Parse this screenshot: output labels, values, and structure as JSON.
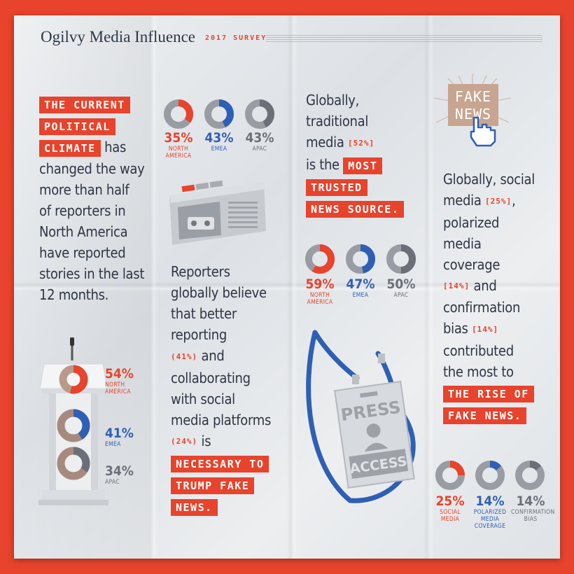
{
  "header": {
    "title": "Ogilvy Media Influence",
    "subtitle": "2017 SURVEY"
  },
  "block1": {
    "highlight_lines": [
      "THE CURRENT",
      "POLITICAL",
      "CLIMATE"
    ],
    "after_highlight": "has",
    "lines": [
      "changed the way",
      "more than half",
      "of reporters in",
      "North America",
      "have reported",
      "stories in the last",
      "12 months."
    ]
  },
  "block2": {
    "lines": [
      "Reporters",
      "globally believe",
      "that better",
      "reporting"
    ],
    "pct1": "(41%)",
    "mid1": "and",
    "lines2": [
      "collaborating",
      "with social",
      "media platforms"
    ],
    "pct2": "(24%)",
    "mid2": "is",
    "highlight_lines": [
      "NECESSARY TO",
      "TRUMP FAKE",
      "NEWS."
    ]
  },
  "block3": {
    "lines": [
      "Globally,",
      "traditional",
      "media"
    ],
    "pct": "[52%]",
    "is_the": "is the",
    "highlight_lines": [
      "MOST",
      "TRUSTED",
      "NEWS SOURCE."
    ]
  },
  "block4": {
    "lines": [
      "Globally, social",
      "media"
    ],
    "pct1": "[25%]",
    "lines2": [
      "polarized",
      "media",
      "coverage"
    ],
    "pct2": "[14%]",
    "and1": "and",
    "line3": "confirmation",
    "bias": "bias",
    "pct3": "[14%]",
    "lines4": [
      "contributed",
      "the most to"
    ],
    "highlight_lines": [
      "THE RISE OF",
      "FAKE NEWS."
    ]
  },
  "fake_news_sign": {
    "line1": "FAKE",
    "line2": "NEWS"
  },
  "press_badge": {
    "line1": "PRESS",
    "line2": "ACCESS"
  },
  "colors": {
    "red": "#e8432c",
    "blue": "#2f5fb4",
    "gray": "#6c6f78",
    "ring_bg": "#9a9ca3"
  },
  "chart_data": [
    {
      "type": "pie",
      "categories": [
        "NORTH AMERICA",
        "EMEA",
        "APAC"
      ],
      "values": [
        35,
        43,
        43
      ],
      "labels": [
        "35%",
        "43%",
        "43%"
      ]
    },
    {
      "type": "pie",
      "categories": [
        "NORTH AMERICA",
        "EMEA",
        "APAC"
      ],
      "values": [
        59,
        47,
        50
      ],
      "labels": [
        "59%",
        "47%",
        "50%"
      ]
    },
    {
      "type": "pie",
      "categories": [
        "NORTH AMERICA",
        "EMEA",
        "APAC"
      ],
      "values": [
        54,
        41,
        34
      ],
      "labels": [
        "54%",
        "41%",
        "34%"
      ]
    },
    {
      "type": "pie",
      "categories": [
        "SOCIAL MEDIA",
        "POLARIZED MEDIA COVERAGE",
        "CONFIRMATION BIAS"
      ],
      "values": [
        25,
        14,
        14
      ],
      "labels": [
        "25%",
        "14%",
        "14%"
      ]
    }
  ]
}
